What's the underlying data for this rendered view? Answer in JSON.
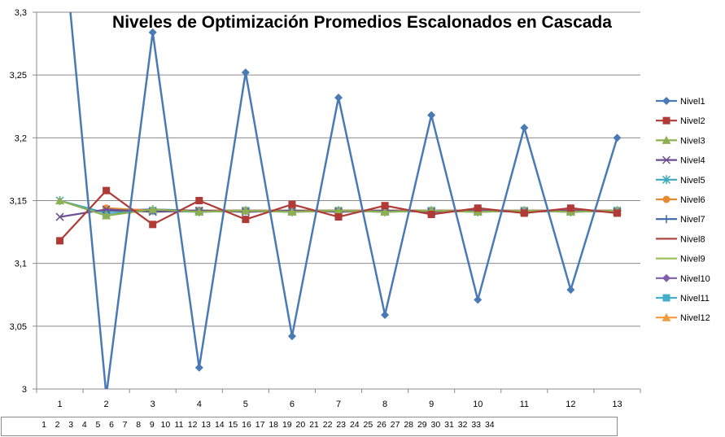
{
  "chart_data": {
    "type": "line",
    "title": "Niveles de Optimización Promedios Escalonados en Cascada",
    "xlabel": "",
    "ylabel": "",
    "ylim": [
      3,
      3.3
    ],
    "yticks": [
      "3",
      "3,05",
      "3,1",
      "3,15",
      "3,2",
      "3,25",
      "3,3"
    ],
    "categories": [
      "1",
      "2",
      "3",
      "4",
      "5",
      "6",
      "7",
      "8",
      "9",
      "10",
      "11",
      "12",
      "13"
    ],
    "secondary_categories": [
      "1",
      "2",
      "3",
      "4",
      "5",
      "6",
      "7",
      "8",
      "9",
      "10",
      "11",
      "12",
      "13",
      "14",
      "15",
      "16",
      "17",
      "18",
      "19",
      "20",
      "21",
      "22",
      "23",
      "24",
      "25",
      "26",
      "27",
      "28",
      "29",
      "30",
      "31",
      "32",
      "33",
      "34"
    ],
    "grid": true,
    "legend": "right",
    "series": [
      {
        "name": "Nivel1",
        "color": "#4a7ab5",
        "marker": "diamond",
        "values": [
          3.39,
          2.995,
          3.284,
          3.017,
          3.252,
          3.042,
          3.232,
          3.059,
          3.218,
          3.071,
          3.208,
          3.079,
          3.2
        ]
      },
      {
        "name": "Nivel2",
        "color": "#b03a36",
        "marker": "square",
        "values": [
          3.118,
          3.158,
          3.131,
          3.15,
          3.135,
          3.147,
          3.137,
          3.146,
          3.139,
          3.144,
          3.14,
          3.144,
          3.14
        ]
      },
      {
        "name": "Nivel3",
        "color": "#8db150",
        "marker": "triangle",
        "values": [
          3.15,
          3.138,
          3.143,
          3.141,
          3.142,
          3.141,
          3.142,
          3.141,
          3.142,
          3.141,
          3.142,
          3.141,
          3.142
        ]
      },
      {
        "name": "Nivel4",
        "color": "#6c4f92",
        "marker": "x",
        "values": [
          3.137,
          3.143,
          3.141,
          3.142,
          3.141,
          3.142,
          3.141,
          3.142,
          3.141,
          3.142,
          3.141,
          3.142,
          3.141
        ]
      },
      {
        "name": "Nivel5",
        "color": "#3ea8bd",
        "marker": "asterisk",
        "values": [
          3.15,
          3.14,
          3.142,
          3.141,
          3.142,
          3.141,
          3.142,
          3.141,
          3.142,
          3.141,
          3.142,
          3.141,
          3.142
        ]
      },
      {
        "name": "Nivel6",
        "color": "#e58a2f",
        "marker": "circle",
        "values": [
          null,
          3.144,
          3.142,
          3.142,
          3.142,
          3.142,
          3.142,
          3.142,
          3.142,
          3.142,
          3.142,
          3.142,
          3.142
        ]
      },
      {
        "name": "Nivel7",
        "color": "#3d6aa5",
        "marker": "plus",
        "values": [
          null,
          3.142,
          3.143,
          3.142,
          3.142,
          3.142,
          3.142,
          3.142,
          3.142,
          3.142,
          3.142,
          3.142,
          3.142
        ]
      },
      {
        "name": "Nivel8",
        "color": "#b04843",
        "marker": "dash",
        "values": [
          null,
          3.142,
          3.142,
          3.142,
          3.142,
          3.142,
          3.142,
          3.142,
          3.142,
          3.142,
          3.142,
          3.142,
          3.142
        ]
      },
      {
        "name": "Nivel9",
        "color": "#9cc15a",
        "marker": "line",
        "values": [
          null,
          3.142,
          3.142,
          3.142,
          3.142,
          3.142,
          3.142,
          3.142,
          3.142,
          3.142,
          3.142,
          3.142,
          3.142
        ]
      },
      {
        "name": "Nivel10",
        "color": "#7e5ea9",
        "marker": "diamond",
        "values": [
          null,
          3.142,
          3.142,
          3.142,
          3.142,
          3.142,
          3.142,
          3.142,
          3.142,
          3.142,
          3.142,
          3.142,
          3.142
        ]
      },
      {
        "name": "Nivel11",
        "color": "#42b0cc",
        "marker": "square",
        "values": [
          null,
          3.142,
          3.142,
          3.142,
          3.142,
          3.142,
          3.142,
          3.142,
          3.142,
          3.142,
          3.142,
          3.142,
          3.142
        ]
      },
      {
        "name": "Nivel12",
        "color": "#f29b3f",
        "marker": "triangle",
        "values": [
          null,
          3.142,
          3.142,
          3.142,
          3.142,
          3.142,
          3.142,
          3.142,
          3.142,
          3.142,
          3.142,
          3.142,
          3.142
        ]
      }
    ]
  }
}
